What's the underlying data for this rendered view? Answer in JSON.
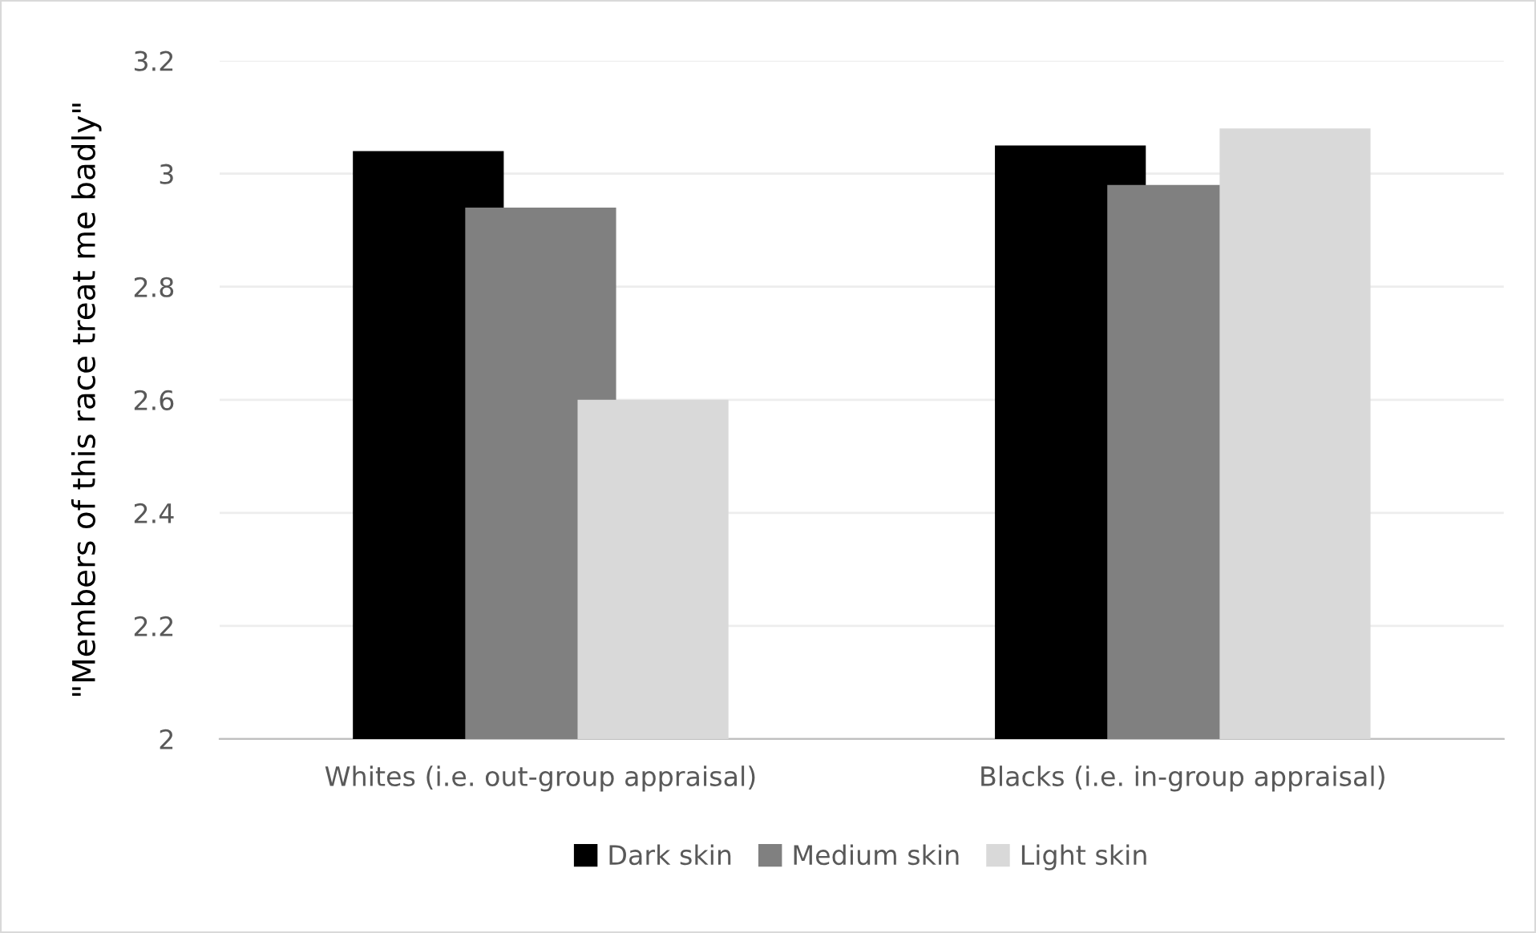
{
  "chart_data": {
    "type": "bar",
    "ylabel": "\"Members of this race treat me badly\"",
    "categories": [
      "Whites (i.e. out-group appraisal)",
      "Blacks (i.e. in-group appraisal)"
    ],
    "series": [
      {
        "name": "Dark skin",
        "color": "#000000",
        "values": [
          3.04,
          3.05
        ]
      },
      {
        "name": "Medium skin",
        "color": "#808080",
        "values": [
          2.94,
          2.98
        ]
      },
      {
        "name": "Light skin",
        "color": "#d9d9d9",
        "values": [
          2.6,
          3.08
        ]
      }
    ],
    "ylim": [
      2,
      3.2
    ],
    "yticks": [
      2,
      2.2,
      2.4,
      2.6,
      2.8,
      3,
      3.2
    ],
    "grid": "y",
    "legend": "bottom"
  }
}
